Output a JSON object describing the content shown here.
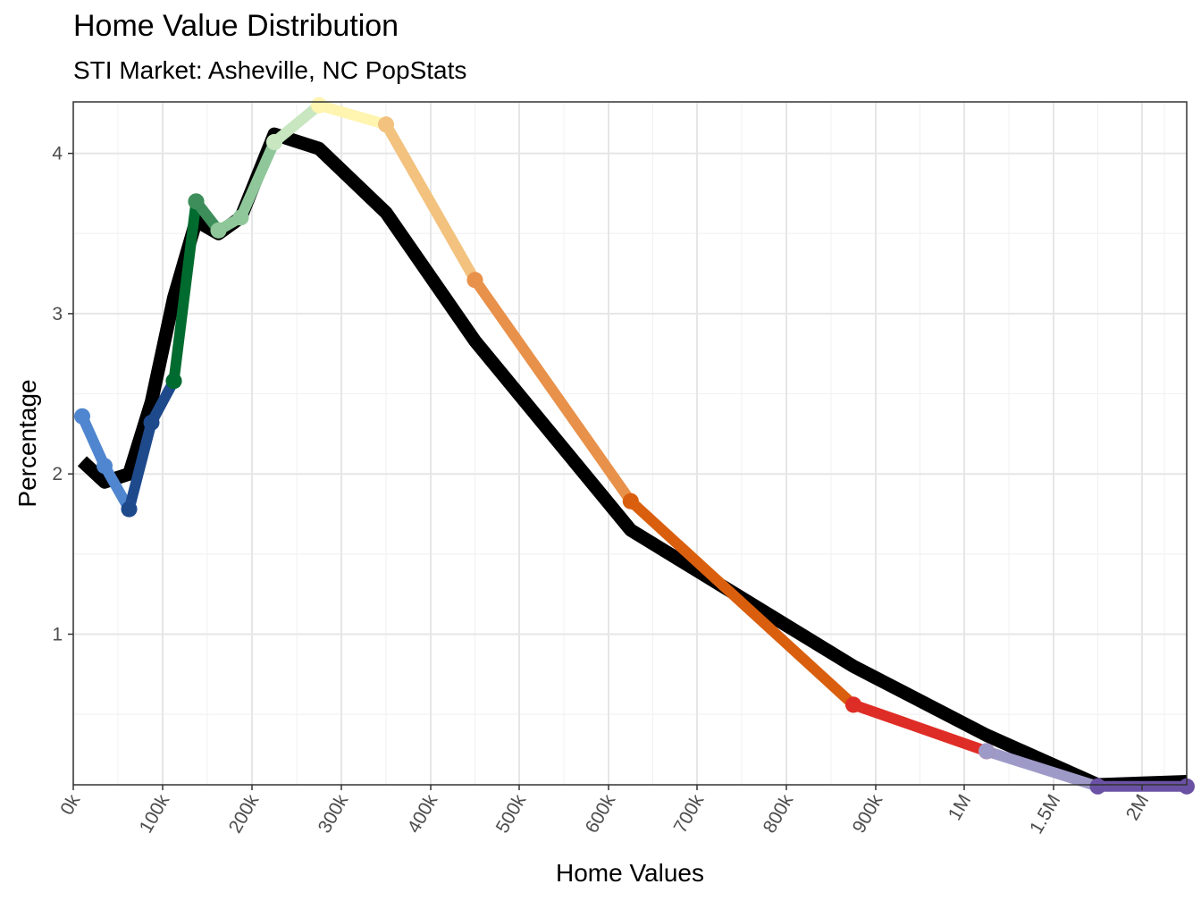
{
  "title": "Home Value Distribution",
  "subtitle": "STI Market: Asheville, NC PopStats",
  "chart_data": {
    "type": "line",
    "xlabel": "Home Values",
    "ylabel": "Percentage",
    "x_ticks": [
      "0k",
      "100k",
      "200k",
      "300k",
      "400k",
      "500k",
      "600k",
      "700k",
      "800k",
      "900k",
      "1M",
      "1.5M",
      "2M"
    ],
    "y_ticks": [
      "1",
      "2",
      "3",
      "4"
    ],
    "ylim": [
      0.05,
      4.3
    ],
    "grid": true,
    "series": [
      {
        "color": "#000000",
        "points": [
          {
            "x": 10,
            "y": 2.08
          },
          {
            "x": 35,
            "y": 1.95
          },
          {
            "x": 62.5,
            "y": 2.0
          },
          {
            "x": 87.5,
            "y": 2.45
          },
          {
            "x": 112.5,
            "y": 3.1
          },
          {
            "x": 137.5,
            "y": 3.58
          },
          {
            "x": 162.5,
            "y": 3.5
          },
          {
            "x": 187.5,
            "y": 3.6
          },
          {
            "x": 225,
            "y": 4.12
          },
          {
            "x": 275,
            "y": 4.03
          },
          {
            "x": 350,
            "y": 3.63
          },
          {
            "x": 450,
            "y": 2.83
          },
          {
            "x": 625,
            "y": 1.65
          },
          {
            "x": 875,
            "y": 0.8
          },
          {
            "x": 1125,
            "y": 0.37
          },
          {
            "x": 1750,
            "y": 0.06
          },
          {
            "x": 2250,
            "y": 0.08
          }
        ]
      },
      {
        "segments": [
          {
            "color": "#4f86cf",
            "x": [
              10,
              35,
              62.5
            ],
            "y": [
              2.36,
              2.05,
              1.78
            ]
          },
          {
            "color": "#1e4a8c",
            "x": [
              62.5,
              87.5,
              112.5
            ],
            "y": [
              1.78,
              2.32,
              2.58
            ]
          },
          {
            "color": "#006b2e",
            "x": [
              112.5,
              137.5
            ],
            "y": [
              2.58,
              3.7
            ]
          },
          {
            "color": "#3d8e5a",
            "x": [
              137.5,
              162.5
            ],
            "y": [
              3.7,
              3.52
            ]
          },
          {
            "color": "#8fc79a",
            "x": [
              162.5,
              187.5,
              225
            ],
            "y": [
              3.52,
              3.6,
              4.07
            ]
          },
          {
            "color": "#c8e6c0",
            "x": [
              225,
              275
            ],
            "y": [
              4.07,
              4.3
            ]
          },
          {
            "color": "#fff4b0",
            "x": [
              275,
              350
            ],
            "y": [
              4.3,
              4.18
            ]
          },
          {
            "color": "#f2c27e",
            "x": [
              350,
              450
            ],
            "y": [
              4.18,
              3.21
            ]
          },
          {
            "color": "#e8914a",
            "x": [
              450,
              625
            ],
            "y": [
              3.21,
              1.83
            ]
          },
          {
            "color": "#d95f0e",
            "x": [
              625,
              875
            ],
            "y": [
              1.83,
              0.56
            ]
          },
          {
            "color": "#de2d26",
            "x": [
              875,
              1125
            ],
            "y": [
              0.56,
              0.27
            ]
          },
          {
            "color": "#9e9ac8",
            "x": [
              1125,
              1750
            ],
            "y": [
              0.27,
              0.05
            ]
          },
          {
            "color": "#6a51a3",
            "x": [
              1750,
              2250
            ],
            "y": [
              0.05,
              0.05
            ]
          }
        ]
      }
    ]
  }
}
